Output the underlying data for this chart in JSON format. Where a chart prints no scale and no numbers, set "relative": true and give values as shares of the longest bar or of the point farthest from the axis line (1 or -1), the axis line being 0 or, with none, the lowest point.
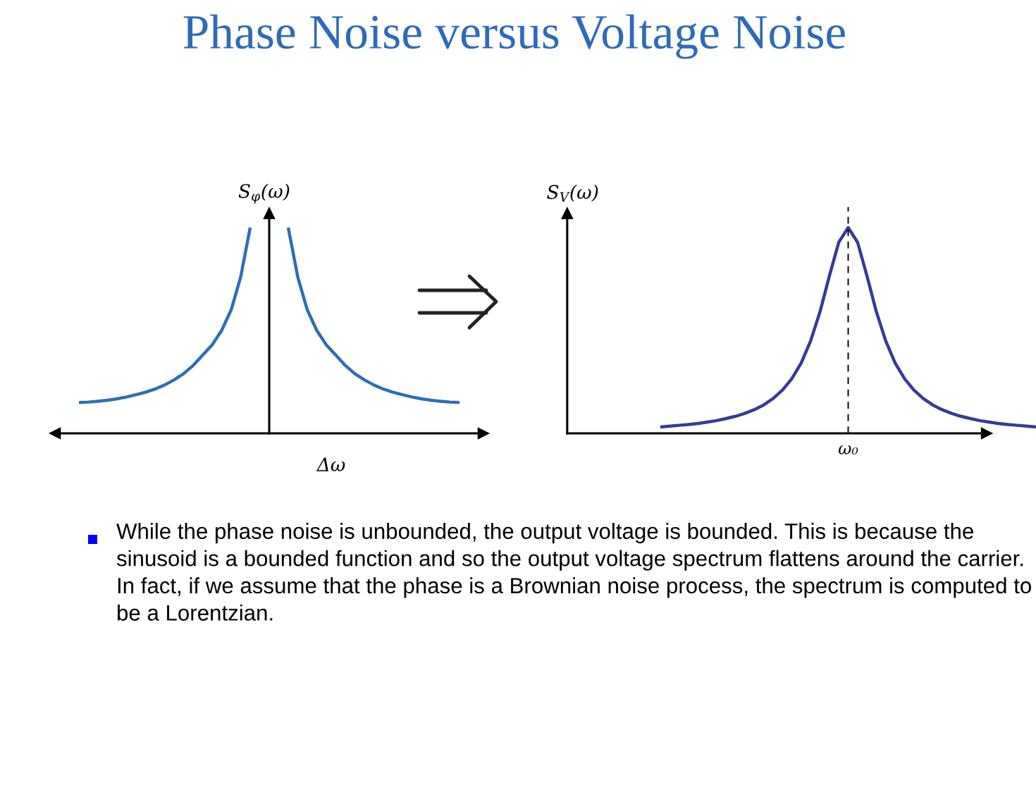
{
  "chart_data": [
    {
      "type": "line",
      "title": "Phase Noise versus Voltage Noise",
      "xlabel": "Δω",
      "ylabel": "S$_{φ}$(ω)",
      "relative": true,
      "categories": [
        null,
        null,
        null,
        null,
        null,
        null,
        null,
        null,
        null,
        null,
        null,
        null,
        null,
        null,
        null,
        null,
        null,
        null,
        null,
        null,
        null,
        null,
        null,
        null,
        null,
        null,
        null,
        null,
        null,
        null,
        null,
        null,
        null,
        null,
        null,
        null,
        null,
        null,
        null,
        null,
        null
      ],
      "series": [
        {
          "color": "#2f6db5",
          "values": [
            0.15,
            0.152,
            0.156,
            0.161,
            0.168,
            0.177,
            0.188,
            0.2,
            0.215,
            0.235,
            0.26,
            0.29,
            0.33,
            0.38,
            0.43,
            0.5,
            0.6,
            0.76,
            1.0,
            null,
            null,
            null,
            null,
            null,
            null,
            null,
            null,
            null,
            null,
            null,
            null,
            null,
            null,
            null,
            null,
            null,
            null,
            null,
            null,
            null,
            null
          ]
        },
        {
          "color": "#2f6db5",
          "values": [
            null,
            null,
            null,
            null,
            null,
            null,
            null,
            null,
            null,
            null,
            null,
            null,
            null,
            null,
            null,
            null,
            null,
            null,
            null,
            null,
            null,
            null,
            1.0,
            0.76,
            0.6,
            0.5,
            0.43,
            0.38,
            0.33,
            0.29,
            0.26,
            0.235,
            0.215,
            0.2,
            0.188,
            0.177,
            0.168,
            0.161,
            0.156,
            0.152,
            0.15
          ]
        }
      ]
    },
    {
      "type": "line",
      "ylabel": "S$_{V}$(ω)",
      "relative": true,
      "categories": [
        null,
        null,
        null,
        null,
        null,
        null,
        null,
        null,
        null,
        null,
        null,
        null,
        null,
        null,
        null,
        null,
        null,
        null,
        null,
        null,
        null,
        null,
        null,
        null,
        null,
        null,
        null,
        null,
        null,
        null,
        null,
        null,
        null,
        null,
        null,
        null,
        null,
        null,
        null,
        null,
        null
      ],
      "series": [
        {
          "color": "#363a96",
          "values": [
            0.031,
            0.035,
            0.039,
            0.043,
            0.048,
            0.055,
            0.062,
            0.072,
            0.083,
            0.097,
            0.115,
            0.138,
            0.169,
            0.21,
            0.266,
            0.342,
            0.449,
            0.591,
            0.765,
            0.929,
            1.0,
            0.929,
            0.765,
            0.591,
            0.449,
            0.342,
            0.266,
            0.21,
            0.169,
            0.138,
            0.115,
            0.097,
            0.083,
            0.072,
            0.062,
            0.055,
            0.048,
            0.043,
            0.039,
            0.035,
            0.031
          ]
        }
      ],
      "annotations": [
        "ω₀"
      ]
    },
    {
      "type": "other",
      "annotations": [
        "While the phase noise is unbounded, the output voltage is bounded. This is because the sinusoid is a bounded function and so the output voltage spectrum flattens around the carrier. In fact, if we assume that the phase is a Brownian noise process, the spectrum is computed to be a Lorentzian."
      ]
    }
  ]
}
